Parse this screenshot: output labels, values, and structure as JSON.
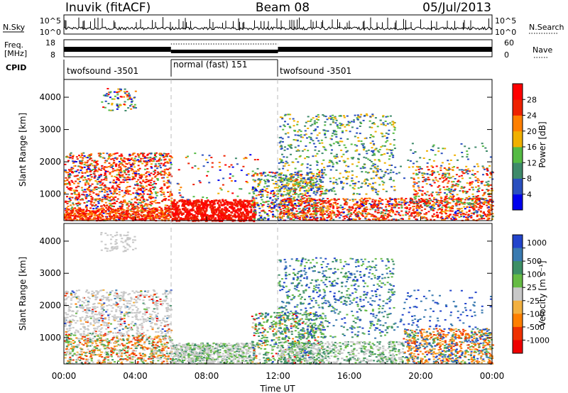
{
  "header": {
    "station": "Inuvik (fitACF)",
    "beam": "Beam 08",
    "date": "05/Jul/2013"
  },
  "panels": {
    "nsky": {
      "left_label": "N.Sky",
      "left_ticks": [
        "10^5",
        "10^0"
      ],
      "right_label": "N.Search",
      "right_ticks": [
        "10^5",
        "10^0"
      ]
    },
    "freq": {
      "left_label_line1": "Freq.",
      "left_label_line2": "[MHz]",
      "left_ticks": [
        "18",
        "8"
      ],
      "right_label": "Nave",
      "right_ticks": [
        "60",
        "0"
      ]
    },
    "cpid": {
      "label": "CPID",
      "segments": [
        "twofsound -3501",
        "normal (fast) 151",
        "twofsound -3501"
      ]
    }
  },
  "chart_data": [
    {
      "type": "heatmap",
      "name": "Power",
      "xlabel": "Time UT",
      "ylabel": "Slant Range [km]",
      "x_range_hours": [
        0,
        24
      ],
      "y_ticks": [
        "1000",
        "2000",
        "3000",
        "4000"
      ],
      "y_range_km": [
        180,
        4550
      ],
      "colorbar_label": "Power [dB]",
      "colorbar_ticks": [
        "4",
        "8",
        "12",
        "16",
        "20",
        "24",
        "28"
      ],
      "colorbar_colors": [
        "#0000ee",
        "#2a4fbf",
        "#3e8a6a",
        "#55bb44",
        "#f0b000",
        "#ff7f00",
        "#ee2200",
        "#ff0000"
      ]
    },
    {
      "type": "heatmap",
      "name": "Velocity",
      "xlabel": "Time UT",
      "ylabel": "Slant Range [km]",
      "x_range_hours": [
        0,
        24
      ],
      "y_ticks": [
        "1000",
        "2000",
        "3000",
        "4000"
      ],
      "y_range_km": [
        180,
        4550
      ],
      "colorbar_label": "Velocity [m s⁻¹]",
      "colorbar_ticks": [
        "1000",
        "500",
        "100",
        "25",
        "-25",
        "-100",
        "-500",
        "-1000"
      ],
      "colorbar_colors": [
        "#2244cc",
        "#3a7ab0",
        "#3d8f66",
        "#66bb44",
        "#c8c8c8",
        "#f2b040",
        "#ff7f00",
        "#ee3000",
        "#ee0000"
      ]
    }
  ],
  "x_ticks": [
    "00:00",
    "04:00",
    "08:00",
    "12:00",
    "16:00",
    "20:00",
    "00:00"
  ],
  "x_label": "Time UT"
}
